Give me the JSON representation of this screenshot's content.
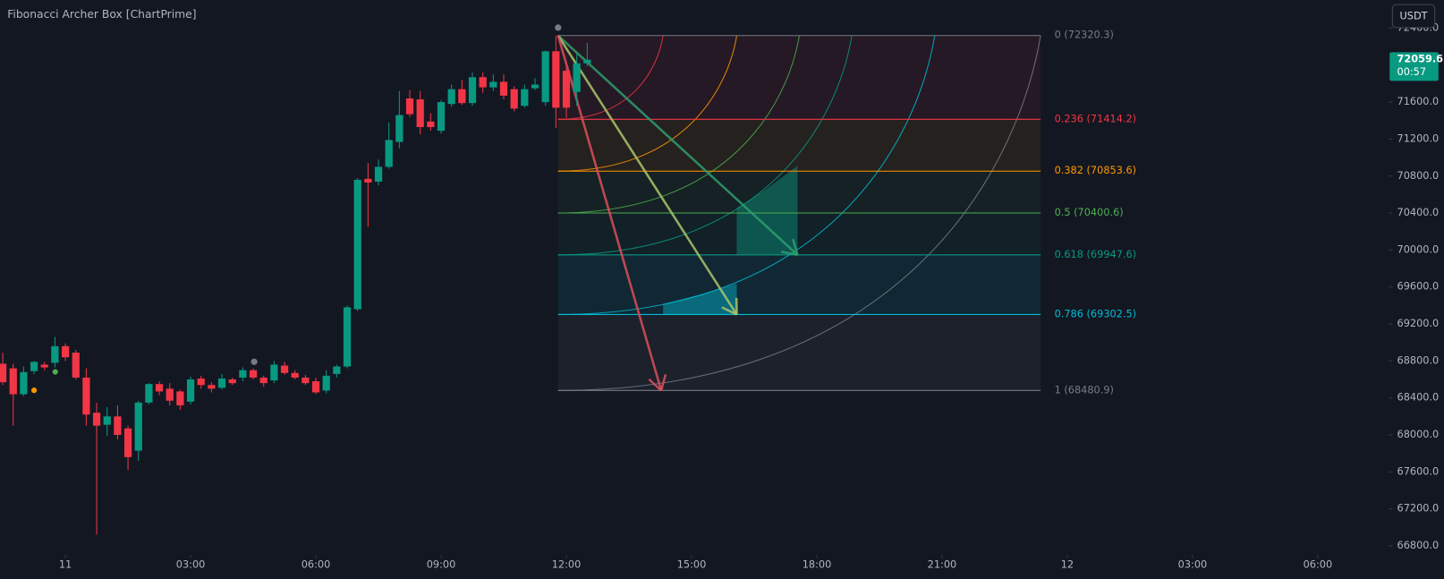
{
  "chart_data": {
    "type": "candlestick",
    "title": "Fibonacci Archer Box [ChartPrime]",
    "quote_currency": "USDT",
    "last_price": 72059.6,
    "countdown": "00:57",
    "up_color": "#089981",
    "down_color": "#f23645",
    "xlim": [
      -1.566,
      31.7
    ],
    "xticks": [
      {
        "value": 0,
        "label": "11"
      },
      {
        "value": 3,
        "label": "03:00"
      },
      {
        "value": 6,
        "label": "06:00"
      },
      {
        "value": 9,
        "label": "09:00"
      },
      {
        "value": 12,
        "label": "12:00"
      },
      {
        "value": 15,
        "label": "15:00"
      },
      {
        "value": 18,
        "label": "18:00"
      },
      {
        "value": 21,
        "label": "21:00"
      },
      {
        "value": 24,
        "label": "12"
      },
      {
        "value": 27,
        "label": "03:00"
      },
      {
        "value": 30,
        "label": "06:00"
      }
    ],
    "ylim": [
      66700,
      72705
    ],
    "yticks": [
      {
        "value": 66800,
        "label": "66800.0"
      },
      {
        "value": 67200,
        "label": "67200.0"
      },
      {
        "value": 67600,
        "label": "67600.0"
      },
      {
        "value": 68000,
        "label": "68000.0"
      },
      {
        "value": 68400,
        "label": "68400.0"
      },
      {
        "value": 68800,
        "label": "68800.0"
      },
      {
        "value": 69200,
        "label": "69200.0"
      },
      {
        "value": 69600,
        "label": "69600.0"
      },
      {
        "value": 70000,
        "label": "70000.0"
      },
      {
        "value": 70400,
        "label": "70400.0"
      },
      {
        "value": 70800,
        "label": "70800.0"
      },
      {
        "value": 71200,
        "label": "71200.0"
      },
      {
        "value": 71600,
        "label": "71600.0"
      },
      {
        "value": 72400,
        "label": "72400.0"
      }
    ],
    "x": [
      -1.5,
      -1.25,
      -1,
      -0.75,
      -0.5,
      -0.25,
      0,
      0.25,
      0.5,
      0.75,
      1,
      1.25,
      1.5,
      1.75,
      2,
      2.25,
      2.5,
      2.75,
      3,
      3.25,
      3.5,
      3.75,
      4,
      4.25,
      4.5,
      4.75,
      5,
      5.25,
      5.5,
      5.75,
      6,
      6.25,
      6.5,
      6.75,
      7,
      7.25,
      7.5,
      7.75,
      8,
      8.25,
      8.5,
      8.75,
      9,
      9.25,
      9.5,
      9.75,
      10,
      10.25,
      10.5,
      10.75,
      11,
      11.25,
      11.5,
      11.75,
      12,
      12.25,
      12.5
    ],
    "open": [
      68770,
      68720,
      68440,
      68690,
      68760,
      68780,
      68960,
      68890,
      68620,
      68240,
      68110,
      68200,
      68070,
      67830,
      68350,
      68550,
      68500,
      68470,
      68360,
      68610,
      68540,
      68510,
      68600,
      68620,
      68700,
      68620,
      68590,
      68750,
      68670,
      68620,
      68580,
      68480,
      68660,
      68740,
      69360,
      70770,
      70740,
      70900,
      71170,
      71640,
      71630,
      71390,
      71290,
      71580,
      71740,
      71590,
      71870,
      71760,
      71820,
      71740,
      71560,
      71750,
      71600,
      72150,
      71940,
      71710,
      72020
    ],
    "high": [
      68890,
      68770,
      68740,
      68800,
      68790,
      69060,
      68990,
      68920,
      68720,
      68350,
      68300,
      68320,
      68100,
      68370,
      68560,
      68580,
      68560,
      68490,
      68630,
      68640,
      68570,
      68660,
      68620,
      68730,
      68720,
      68640,
      68800,
      68790,
      68700,
      68650,
      68620,
      68700,
      68760,
      69400,
      70780,
      70940,
      70980,
      71380,
      71720,
      71730,
      71720,
      71480,
      71620,
      71790,
      71840,
      71920,
      71920,
      71900,
      71900,
      71770,
      71790,
      71860,
      72160,
      72320,
      72010,
      72120,
      72240
    ],
    "low": [
      68540,
      68100,
      68420,
      68660,
      68700,
      68730,
      68800,
      68600,
      68100,
      66920,
      67990,
      67950,
      67620,
      67720,
      68330,
      68430,
      68320,
      68270,
      68330,
      68500,
      68460,
      68490,
      68540,
      68580,
      68600,
      68520,
      68560,
      68650,
      68600,
      68540,
      68440,
      68450,
      68620,
      68720,
      69340,
      70250,
      70700,
      70880,
      71100,
      71440,
      71250,
      71290,
      71260,
      71550,
      71570,
      71560,
      71700,
      71720,
      71630,
      71500,
      71540,
      71730,
      71560,
      71320,
      71430,
      71560,
      71990
    ],
    "close": [
      68570,
      68440,
      68680,
      68790,
      68730,
      68960,
      68840,
      68620,
      68220,
      68100,
      68200,
      68000,
      67760,
      68350,
      68550,
      68470,
      68370,
      68320,
      68600,
      68540,
      68500,
      68610,
      68560,
      68700,
      68620,
      68560,
      68760,
      68670,
      68620,
      68560,
      68460,
      68640,
      68740,
      69380,
      70760,
      70730,
      70900,
      71190,
      71460,
      71470,
      71330,
      71330,
      71600,
      71740,
      71590,
      71870,
      71760,
      71820,
      71670,
      71530,
      71740,
      71790,
      72150,
      71540,
      71540,
      72020,
      72059.6
    ],
    "fib_levels": [
      {
        "label": "0 (72320.3)",
        "value": 72320.3,
        "color": "#787b86"
      },
      {
        "label": "0.236 (71414.2)",
        "value": 71414.2,
        "color": "#f23645"
      },
      {
        "label": "0.382 (70853.6)",
        "value": 70853.6,
        "color": "#ff9800"
      },
      {
        "label": "0.5 (70400.6)",
        "value": 70400.6,
        "color": "#4caf50"
      },
      {
        "label": "0.618 (69947.6)",
        "value": 69947.6,
        "color": "#089981"
      },
      {
        "label": "0.786 (69302.5)",
        "value": 69302.5,
        "color": "#00bcd4"
      },
      {
        "label": "1 (68480.9)",
        "value": 68480.9,
        "color": "#787b86"
      }
    ]
  }
}
